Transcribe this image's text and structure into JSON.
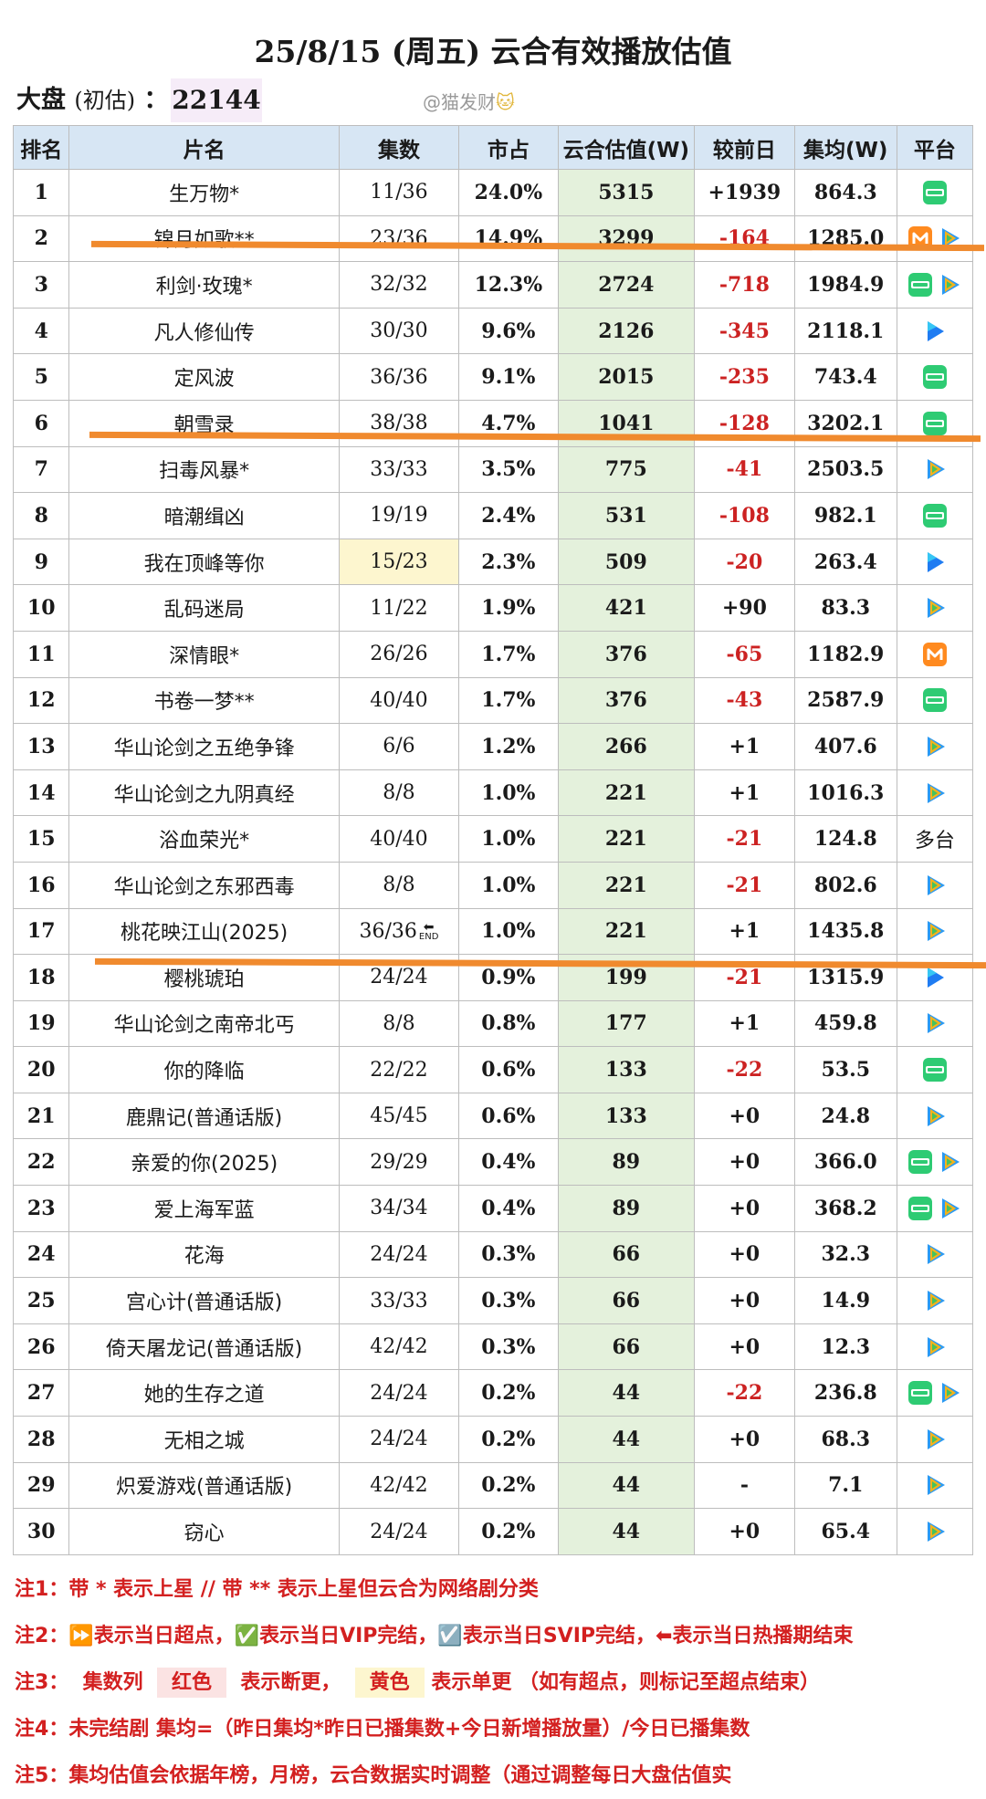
{
  "title": "25/8/15 (周五) 云合有效播放估值",
  "summary": {
    "label": "大盘",
    "sub": "(初估)",
    "colon": "：",
    "value": "22144"
  },
  "watermark": {
    "text": "@猫发财",
    "emoji": "🐱"
  },
  "table": {
    "headers": [
      "排名",
      "片名",
      "集数",
      "市占",
      "云合估值(W)",
      "较前日",
      "集均(W)",
      "平台"
    ],
    "rows": [
      {
        "rank": "1",
        "title": "生万物*",
        "episodes": "11/36",
        "share": "24.0%",
        "value": "5315",
        "change": "+1939",
        "avg": "864.3",
        "platforms": [
          "iqiyi"
        ]
      },
      {
        "rank": "2",
        "title": "锦月如歌**",
        "episodes": "23/36",
        "share": "14.9%",
        "value": "3299",
        "change": "-164",
        "avg": "1285.0",
        "platforms": [
          "mango",
          "tencent"
        ]
      },
      {
        "rank": "3",
        "title": "利剑·玫瑰*",
        "episodes": "32/32",
        "share": "12.3%",
        "value": "2724",
        "change": "-718",
        "avg": "1984.9",
        "platforms": [
          "iqiyi",
          "tencent"
        ]
      },
      {
        "rank": "4",
        "title": "凡人修仙传",
        "episodes": "30/30",
        "share": "9.6%",
        "value": "2126",
        "change": "-345",
        "avg": "2118.1",
        "platforms": [
          "youku"
        ]
      },
      {
        "rank": "5",
        "title": "定风波",
        "episodes": "36/36",
        "share": "9.1%",
        "value": "2015",
        "change": "-235",
        "avg": "743.4",
        "platforms": [
          "iqiyi"
        ]
      },
      {
        "rank": "6",
        "title": "朝雪录",
        "episodes": "38/38",
        "share": "4.7%",
        "value": "1041",
        "change": "-128",
        "avg": "3202.1",
        "platforms": [
          "iqiyi"
        ]
      },
      {
        "rank": "7",
        "title": "扫毒风暴*",
        "episodes": "33/33",
        "share": "3.5%",
        "value": "775",
        "change": "-41",
        "avg": "2503.5",
        "platforms": [
          "tencent"
        ]
      },
      {
        "rank": "8",
        "title": "暗潮缉凶",
        "episodes": "19/19",
        "share": "2.4%",
        "value": "531",
        "change": "-108",
        "avg": "982.1",
        "platforms": [
          "iqiyi"
        ]
      },
      {
        "rank": "9",
        "title": "我在顶峰等你",
        "episodes": "15/23",
        "share": "2.3%",
        "value": "509",
        "change": "-20",
        "avg": "263.4",
        "platforms": [
          "youku"
        ],
        "ep_highlight": "yellow"
      },
      {
        "rank": "10",
        "title": "乱码迷局",
        "episodes": "11/22",
        "share": "1.9%",
        "value": "421",
        "change": "+90",
        "avg": "83.3",
        "platforms": [
          "tencent"
        ]
      },
      {
        "rank": "11",
        "title": "深情眼*",
        "episodes": "26/26",
        "share": "1.7%",
        "value": "376",
        "change": "-65",
        "avg": "1182.9",
        "platforms": [
          "mango"
        ]
      },
      {
        "rank": "12",
        "title": "书卷一梦**",
        "episodes": "40/40",
        "share": "1.7%",
        "value": "376",
        "change": "-43",
        "avg": "2587.9",
        "platforms": [
          "iqiyi"
        ]
      },
      {
        "rank": "13",
        "title": "华山论剑之五绝争锋",
        "episodes": "6/6",
        "share": "1.2%",
        "value": "266",
        "change": "+1",
        "avg": "407.6",
        "platforms": [
          "tencent"
        ]
      },
      {
        "rank": "14",
        "title": "华山论剑之九阴真经",
        "episodes": "8/8",
        "share": "1.0%",
        "value": "221",
        "change": "+1",
        "avg": "1016.3",
        "platforms": [
          "tencent"
        ]
      },
      {
        "rank": "15",
        "title": "浴血荣光*",
        "episodes": "40/40",
        "share": "1.0%",
        "value": "221",
        "change": "-21",
        "avg": "124.8",
        "platforms": [],
        "platform_text": "多台"
      },
      {
        "rank": "16",
        "title": "华山论剑之东邪西毒",
        "episodes": "8/8",
        "share": "1.0%",
        "value": "221",
        "change": "-21",
        "avg": "802.6",
        "platforms": [
          "tencent"
        ]
      },
      {
        "rank": "17",
        "title": "桃花映江山(2025)",
        "episodes": "36/36",
        "share": "1.0%",
        "value": "221",
        "change": "+1",
        "avg": "1435.8",
        "platforms": [
          "tencent"
        ],
        "end_mark": "END"
      },
      {
        "rank": "18",
        "title": "樱桃琥珀",
        "episodes": "24/24",
        "share": "0.9%",
        "value": "199",
        "change": "-21",
        "avg": "1315.9",
        "platforms": [
          "youku"
        ]
      },
      {
        "rank": "19",
        "title": "华山论剑之南帝北丐",
        "episodes": "8/8",
        "share": "0.8%",
        "value": "177",
        "change": "+1",
        "avg": "459.8",
        "platforms": [
          "tencent"
        ]
      },
      {
        "rank": "20",
        "title": "你的降临",
        "episodes": "22/22",
        "share": "0.6%",
        "value": "133",
        "change": "-22",
        "avg": "53.5",
        "platforms": [
          "iqiyi"
        ]
      },
      {
        "rank": "21",
        "title": "鹿鼎记(普通话版)",
        "episodes": "45/45",
        "share": "0.6%",
        "value": "133",
        "change": "+0",
        "avg": "24.8",
        "platforms": [
          "tencent"
        ]
      },
      {
        "rank": "22",
        "title": "亲爱的你(2025)",
        "episodes": "29/29",
        "share": "0.4%",
        "value": "89",
        "change": "+0",
        "avg": "366.0",
        "platforms": [
          "iqiyi",
          "tencent"
        ]
      },
      {
        "rank": "23",
        "title": "爱上海军蓝",
        "episodes": "34/34",
        "share": "0.4%",
        "value": "89",
        "change": "+0",
        "avg": "368.2",
        "platforms": [
          "iqiyi",
          "tencent"
        ]
      },
      {
        "rank": "24",
        "title": "花海",
        "episodes": "24/24",
        "share": "0.3%",
        "value": "66",
        "change": "+0",
        "avg": "32.3",
        "platforms": [
          "tencent"
        ]
      },
      {
        "rank": "25",
        "title": "宫心计(普通话版)",
        "episodes": "33/33",
        "share": "0.3%",
        "value": "66",
        "change": "+0",
        "avg": "14.9",
        "platforms": [
          "tencent"
        ]
      },
      {
        "rank": "26",
        "title": "倚天屠龙记(普通话版)",
        "episodes": "42/42",
        "share": "0.3%",
        "value": "66",
        "change": "+0",
        "avg": "12.3",
        "platforms": [
          "tencent"
        ]
      },
      {
        "rank": "27",
        "title": "她的生存之道",
        "episodes": "24/24",
        "share": "0.2%",
        "value": "44",
        "change": "-22",
        "avg": "236.8",
        "platforms": [
          "iqiyi",
          "tencent"
        ]
      },
      {
        "rank": "28",
        "title": "无相之城",
        "episodes": "24/24",
        "share": "0.2%",
        "value": "44",
        "change": "+0",
        "avg": "68.3",
        "platforms": [
          "tencent"
        ]
      },
      {
        "rank": "29",
        "title": "炽爱游戏(普通话版)",
        "episodes": "42/42",
        "share": "0.2%",
        "value": "44",
        "change": "-",
        "avg": "7.1",
        "platforms": [
          "tencent"
        ]
      },
      {
        "rank": "30",
        "title": "窃心",
        "episodes": "24/24",
        "share": "0.2%",
        "value": "44",
        "change": "+0",
        "avg": "65.4",
        "platforms": [
          "tencent"
        ]
      }
    ]
  },
  "notes": {
    "n1": {
      "label": "注1：",
      "text": "带 * 表示上星 // 带 ** 表示上星但云合为网络剧分类"
    },
    "n2": {
      "label": "注2：",
      "text": "⏩表示当日超点，✅表示当日VIP完结，☑️表示当日SVIP完结，⬅表示当日热播期结束"
    },
    "n3": {
      "label": "注3：",
      "a": "集数列",
      "red": "红色",
      "b": "表示断更，",
      "yellow": "黄色",
      "c": "表示单更 （如有超点，则标记至超点结束）"
    },
    "n4": {
      "label": "注4：",
      "text": "未完结剧 集均=（昨日集均*昨日已播集数+今日新增播放量）/今日已播集数"
    },
    "n5": {
      "label": "注5：",
      "text": "集均估值会依据年榜，月榜，云合数据实时调整（通过调整每日大盘估值实"
    }
  },
  "colors": {
    "header_bg": "#d7e6f4",
    "value_col_bg": "#e4f1dc",
    "negative": "#cc2222",
    "note_red": "#d32020",
    "orange_line": "#f08a2e",
    "dapan_bg": "#f6ecf8",
    "yellow_hl": "#fdf6cf",
    "red_hl": "#fbe3e3"
  },
  "platform_icons": {
    "iqiyi": "iqiyi-icon",
    "tencent": "tencent-video-icon",
    "mango": "mango-tv-icon",
    "youku": "youku-icon"
  }
}
